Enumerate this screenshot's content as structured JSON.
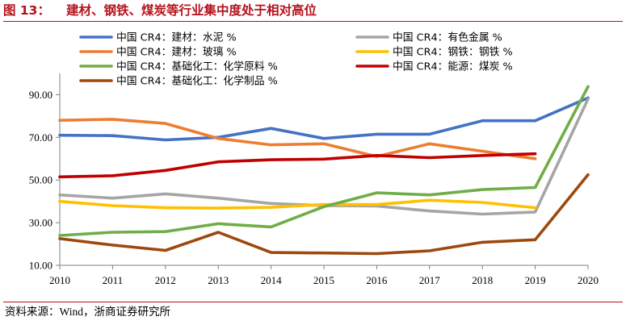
{
  "figure": {
    "label": "图 13：",
    "title": "建材、钢铁、煤炭等行业集中度处于相对高位",
    "source": "资料来源：Wind，浙商证券研究所"
  },
  "chart_data": {
    "type": "line",
    "x": [
      "2010",
      "2011",
      "2012",
      "2013",
      "2014",
      "2015",
      "2016",
      "2017",
      "2018",
      "2019",
      "2020"
    ],
    "ylim": [
      10,
      100
    ],
    "yticks": [
      "10.00",
      "30.00",
      "50.00",
      "70.00",
      "90.00"
    ],
    "ytick_values": [
      10,
      30,
      50,
      70,
      90
    ],
    "series": [
      {
        "name": "中国 CR4：建材：水泥 %",
        "color": "#4472c4",
        "values": [
          71.0,
          70.8,
          68.8,
          70.0,
          74.2,
          69.5,
          71.5,
          71.5,
          77.8,
          77.8,
          88.5
        ]
      },
      {
        "name": "中国 CR4：有色金属 %",
        "color": "#a5a5a5",
        "values": [
          43.0,
          41.5,
          43.5,
          41.5,
          39.0,
          38.0,
          37.8,
          35.5,
          34.0,
          35.0,
          88.0
        ]
      },
      {
        "name": "中国 CR4：建材：玻璃 %",
        "color": "#ed7d31",
        "values": [
          78.0,
          78.5,
          76.5,
          69.5,
          66.5,
          67.0,
          61.0,
          67.0,
          63.5,
          60.0,
          null
        ]
      },
      {
        "name": "中国 CR4：钢铁：钢铁 %",
        "color": "#ffc000",
        "values": [
          40.0,
          38.0,
          37.0,
          36.8,
          37.2,
          38.5,
          38.5,
          40.5,
          39.5,
          37.0,
          null
        ]
      },
      {
        "name": "中国 CR4：基础化工：化学原料 %",
        "color": "#70ad47",
        "values": [
          24.0,
          25.5,
          25.8,
          29.5,
          28.0,
          37.5,
          44.0,
          43.0,
          45.5,
          46.5,
          93.8
        ]
      },
      {
        "name": "中国 CR4：能源：煤炭 %",
        "color": "#c00000",
        "values": [
          51.5,
          52.0,
          54.5,
          58.5,
          59.5,
          59.8,
          61.5,
          60.5,
          61.5,
          62.3,
          null
        ]
      },
      {
        "name": "中国 CR4：基础化工：化学制品 %",
        "color": "#9e480e",
        "values": [
          22.5,
          19.5,
          17.0,
          25.5,
          16.0,
          15.8,
          15.5,
          16.8,
          20.8,
          22.0,
          52.5
        ]
      }
    ]
  }
}
